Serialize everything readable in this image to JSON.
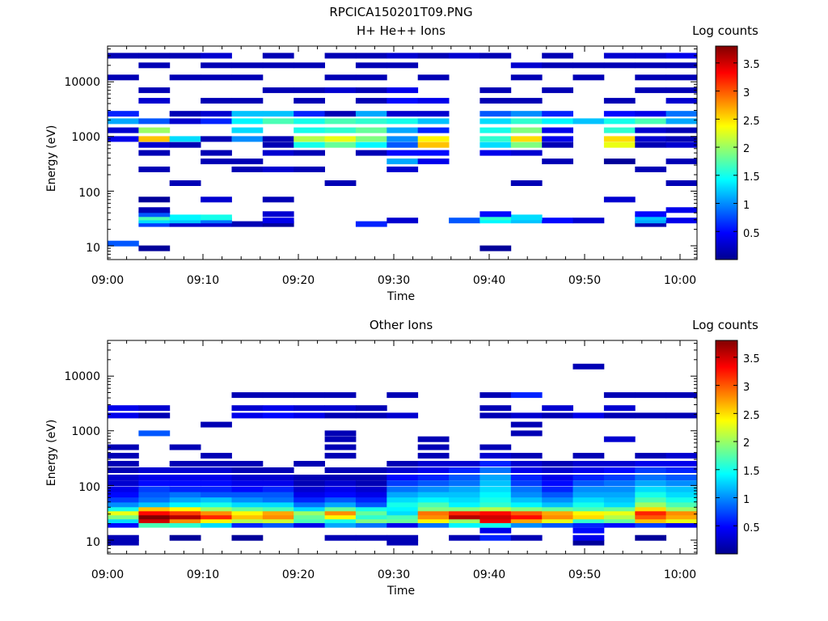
{
  "figure_title": "RPCICA150201T09.PNG",
  "chart_data": [
    {
      "type": "heatmap",
      "title": "H+ He++ Ions",
      "xlabel": "Time",
      "ylabel": "Energy (eV)",
      "colorbar_label": "Log counts",
      "x_range": [
        "09:00",
        "10:02"
      ],
      "x_ticks": [
        "09:00",
        "09:10",
        "09:20",
        "09:30",
        "09:40",
        "09:50",
        "10:00"
      ],
      "y_scale": "log",
      "y_range": [
        5.6,
        45000
      ],
      "y_ticks": [
        "10",
        "100",
        "1000",
        "10000"
      ],
      "colorbar_range": [
        0,
        3.8
      ],
      "colorbar_ticks": [
        "0.5",
        "1",
        "1.5",
        "2",
        "2.5",
        "3",
        "3.5"
      ],
      "colormap": "jet",
      "bands": [
        {
          "e": 11,
          "c": [
            0.8,
            0,
            0,
            0,
            0,
            0,
            0,
            0,
            0,
            0,
            0,
            0,
            0,
            0,
            0,
            0,
            0,
            0,
            0
          ]
        },
        {
          "e": 9,
          "c": [
            0,
            0.1,
            0,
            0,
            0,
            0,
            0,
            0,
            0,
            0,
            0,
            0,
            0.1,
            0,
            0,
            0,
            0,
            0,
            0
          ]
        },
        {
          "e": 25,
          "c": [
            0,
            0.7,
            0.3,
            0.3,
            0.2,
            0.1,
            0,
            0,
            0.6,
            0,
            0,
            0,
            0,
            0,
            0,
            0,
            0,
            0.2,
            0
          ]
        },
        {
          "e": 29,
          "c": [
            0,
            1.3,
            1.2,
            0.9,
            0,
            0.4,
            0,
            0,
            0,
            0.3,
            0,
            0.8,
            1.4,
            1.2,
            0.5,
            0.3,
            0,
            1.1,
            0.4
          ]
        },
        {
          "e": 33,
          "c": [
            0,
            1.7,
            1.4,
            1.5,
            0,
            0,
            0,
            0,
            0,
            0,
            0,
            0,
            1.6,
            1.3,
            0,
            0,
            0,
            1.2,
            0
          ]
        },
        {
          "e": 38,
          "c": [
            0,
            0.8,
            0,
            0,
            0,
            0.3,
            0,
            0,
            0,
            0,
            0,
            0,
            0.5,
            0,
            0,
            0,
            0,
            0.5,
            0
          ]
        },
        {
          "e": 45,
          "c": [
            0,
            0.2,
            0,
            0,
            0,
            0,
            0,
            0,
            0,
            0,
            0,
            0,
            0,
            0,
            0,
            0,
            0,
            0,
            0.4
          ]
        },
        {
          "e": 70,
          "c": [
            0,
            0.1,
            0,
            0.3,
            0,
            0.2,
            0,
            0,
            0,
            0,
            0,
            0,
            0,
            0,
            0,
            0,
            0.3,
            0,
            0
          ]
        },
        {
          "e": 140,
          "c": [
            0,
            0,
            0.2,
            0,
            0,
            0,
            0,
            0.2,
            0,
            0,
            0,
            0,
            0,
            0.2,
            0,
            0,
            0,
            0,
            0.2
          ]
        },
        {
          "e": 250,
          "c": [
            0,
            0.2,
            0,
            0,
            0.2,
            0.3,
            0.2,
            0,
            0,
            0.3,
            0,
            0,
            0,
            0,
            0,
            0,
            0,
            0.2,
            0
          ]
        },
        {
          "e": 350,
          "c": [
            0,
            0,
            0,
            0.2,
            0.2,
            0,
            0,
            0,
            0,
            1.1,
            0.4,
            0,
            0,
            0,
            0.2,
            0,
            0.1,
            0,
            0.2
          ]
        },
        {
          "e": 500,
          "c": [
            0,
            0.2,
            0,
            0.2,
            0,
            0.3,
            0.2,
            0,
            0.2,
            0.5,
            0.5,
            0,
            0.4,
            0.3,
            0,
            0,
            0,
            0,
            0
          ]
        },
        {
          "e": 700,
          "c": [
            0,
            0.3,
            0.2,
            0,
            0,
            0.2,
            1.5,
            1.8,
            1.4,
            0.8,
            2.6,
            0,
            1.3,
            1.9,
            0.2,
            0,
            2.3,
            0.2,
            0.3
          ]
        },
        {
          "e": 900,
          "c": [
            0.4,
            2.6,
            1.3,
            0.2,
            1.0,
            0.2,
            2.1,
            2.3,
            1.9,
            1.0,
            2.4,
            0,
            1.6,
            2.5,
            0.4,
            0,
            2.5,
            0.3,
            0.2
          ]
        },
        {
          "e": 1300,
          "c": [
            0.3,
            2.0,
            0,
            0,
            1.3,
            0,
            1.5,
            1.6,
            1.8,
            1.1,
            0.6,
            0,
            1.5,
            1.9,
            0.4,
            0,
            1.6,
            0.3,
            0.2
          ]
        },
        {
          "e": 1900,
          "c": [
            1.1,
            0.8,
            0.3,
            0.6,
            1.4,
            1.7,
            1.5,
            1.7,
            1.6,
            1.5,
            1.2,
            0,
            1.3,
            1.6,
            1.4,
            1.2,
            1.5,
            1.7,
            1.1
          ]
        },
        {
          "e": 2600,
          "c": [
            0.6,
            0,
            0.2,
            0.3,
            1.2,
            1.2,
            0.6,
            0.2,
            1.1,
            0.3,
            0.3,
            0,
            0.8,
            1.0,
            0.6,
            0,
            0.5,
            0.4,
            0.9
          ]
        },
        {
          "e": 4500,
          "c": [
            0,
            0.3,
            0,
            0.2,
            0.2,
            0,
            0.2,
            0,
            0.2,
            0.5,
            0.4,
            0,
            0.2,
            0.2,
            0,
            0,
            0.2,
            0,
            0.3
          ]
        },
        {
          "e": 7000,
          "c": [
            0,
            0.2,
            0,
            0,
            0,
            0.2,
            0.2,
            0.3,
            0.2,
            0.4,
            0,
            0,
            0.2,
            0,
            0.2,
            0,
            0,
            0.2,
            0.2
          ]
        },
        {
          "e": 12000,
          "c": [
            0.2,
            0,
            0.2,
            0.2,
            0.2,
            0,
            0,
            0.2,
            0.2,
            0,
            0.2,
            0,
            0,
            0.2,
            0,
            0.2,
            0,
            0.2,
            0.2
          ]
        },
        {
          "e": 20000,
          "c": [
            0,
            0.2,
            0,
            0.2,
            0.2,
            0.2,
            0.2,
            0,
            0.2,
            0.2,
            0,
            0,
            0,
            0.3,
            0.2,
            0.2,
            0.2,
            0.2,
            0.2
          ]
        },
        {
          "e": 30000,
          "c": [
            0.2,
            0.2,
            0.2,
            0.3,
            0,
            0.2,
            0,
            0.2,
            0.2,
            0.3,
            0.2,
            0.3,
            0.2,
            0,
            0.2,
            0,
            0.3,
            0.3,
            0.4
          ]
        }
      ]
    },
    {
      "type": "heatmap",
      "title": "Other Ions",
      "xlabel": "Time",
      "ylabel": "Energy (eV)",
      "colorbar_label": "Log counts",
      "x_range": [
        "09:00",
        "10:02"
      ],
      "x_ticks": [
        "09:00",
        "09:10",
        "09:20",
        "09:30",
        "09:40",
        "09:50",
        "10:00"
      ],
      "y_scale": "log",
      "y_range": [
        5.6,
        45000
      ],
      "y_ticks": [
        "10",
        "100",
        "1000",
        "10000"
      ],
      "colorbar_range": [
        0,
        3.8
      ],
      "colorbar_ticks": [
        "0.5",
        "1",
        "1.5",
        "2",
        "2.5",
        "3",
        "3.5"
      ],
      "colormap": "jet",
      "bands": [
        {
          "e": 9,
          "c": [
            0.2,
            0,
            0,
            0,
            0,
            0,
            0,
            0,
            0,
            0.2,
            0,
            0,
            0,
            0,
            0,
            0.1,
            0,
            0,
            0
          ]
        },
        {
          "e": 11,
          "c": [
            0.2,
            0,
            0.1,
            0,
            0.1,
            0,
            0,
            0.2,
            0.2,
            0.2,
            0,
            0.2,
            0.6,
            0.2,
            0,
            0.4,
            0,
            0.1,
            0
          ]
        },
        {
          "e": 15,
          "c": [
            0,
            0,
            0,
            0,
            0,
            0,
            0,
            0,
            0,
            0,
            0,
            0,
            0.4,
            0,
            0,
            0.5,
            0,
            0,
            0
          ]
        },
        {
          "e": 19,
          "c": [
            0.5,
            1.7,
            1.6,
            1.3,
            0.6,
            0.8,
            0.4,
            1.1,
            0.9,
            0.4,
            0.9,
            1.4,
            1.5,
            1.0,
            0.8,
            0.6,
            0.5,
            0.7,
            0.4
          ]
        },
        {
          "e": 23,
          "c": [
            1.3,
            3.5,
            2.8,
            2.4,
            2.1,
            2.2,
            1.7,
            1.5,
            1.9,
            1.8,
            2.4,
            2.0,
            3.4,
            2.7,
            2.3,
            1.6,
            1.8,
            2.6,
            2.3
          ]
        },
        {
          "e": 27,
          "c": [
            1.9,
            3.8,
            3.6,
            3.2,
            2.6,
            2.8,
            1.8,
            2.4,
            1.6,
            1.7,
            2.8,
            3.6,
            3.5,
            3.3,
            2.8,
            2.5,
            2.1,
            3.0,
            2.7
          ]
        },
        {
          "e": 32,
          "c": [
            2.3,
            3.3,
            3.1,
            2.8,
            2.4,
            2.7,
            2.0,
            2.8,
            1.8,
            1.3,
            2.9,
            3.2,
            3.3,
            3.0,
            2.7,
            2.4,
            2.3,
            3.2,
            2.8
          ]
        },
        {
          "e": 38,
          "c": [
            1.5,
            2.6,
            2.4,
            2.0,
            1.8,
            1.7,
            1.3,
            1.8,
            1.5,
            1.4,
            1.9,
            1.9,
            2.1,
            1.9,
            1.8,
            1.7,
            1.8,
            2.5,
            2.0
          ]
        },
        {
          "e": 45,
          "c": [
            1.0,
            1.2,
            1.4,
            1.5,
            1.3,
            1.3,
            0.9,
            1.1,
            0.8,
            1.5,
            1.7,
            1.4,
            1.6,
            1.4,
            1.2,
            1.5,
            1.3,
            2.0,
            1.7
          ]
        },
        {
          "e": 55,
          "c": [
            0.7,
            0.9,
            1.1,
            1.2,
            1.0,
            0.9,
            0.6,
            0.8,
            0.6,
            1.3,
            1.4,
            1.3,
            1.5,
            1.2,
            1.0,
            1.3,
            1.2,
            1.7,
            1.5
          ]
        },
        {
          "e": 68,
          "c": [
            0.5,
            0.8,
            0.9,
            0.8,
            0.8,
            0.8,
            0.4,
            0.5,
            0.4,
            1.1,
            1.2,
            1.2,
            1.4,
            1.0,
            0.8,
            1.1,
            1.1,
            1.5,
            1.3
          ]
        },
        {
          "e": 85,
          "c": [
            0.4,
            0.7,
            0.6,
            0.6,
            0.5,
            0.6,
            0.3,
            0.4,
            0.3,
            0.9,
            1.0,
            1.1,
            1.3,
            0.9,
            0.6,
            1.0,
            1.0,
            1.3,
            1.2
          ]
        },
        {
          "e": 110,
          "c": [
            0.3,
            0.5,
            0.5,
            0.5,
            0.4,
            0.4,
            0.2,
            0.3,
            0.2,
            0.7,
            0.8,
            0.9,
            1.2,
            0.7,
            0.5,
            0.8,
            0.9,
            1.1,
            1.0
          ]
        },
        {
          "e": 140,
          "c": [
            0.3,
            0.4,
            0.4,
            0.4,
            0.3,
            0.3,
            0.2,
            0.2,
            0.2,
            0.5,
            0.6,
            0.8,
            1.1,
            0.6,
            0.4,
            0.6,
            0.7,
            0.9,
            0.8
          ]
        },
        {
          "e": 190,
          "c": [
            0.2,
            0.3,
            0.3,
            0.3,
            0.2,
            0.2,
            0,
            0.2,
            0.2,
            0.3,
            0.4,
            0.6,
            0.9,
            0.4,
            0.3,
            0.4,
            0.5,
            0.7,
            0.6
          ]
        },
        {
          "e": 250,
          "c": [
            0.2,
            0,
            0.2,
            0.2,
            0.2,
            0,
            0.2,
            0,
            0,
            0.2,
            0.3,
            0.3,
            0.6,
            0.3,
            0.2,
            0.3,
            0.3,
            0.4,
            0.4
          ]
        },
        {
          "e": 350,
          "c": [
            0.2,
            0,
            0,
            0.2,
            0,
            0,
            0,
            0.2,
            0,
            0,
            0.2,
            0,
            0.3,
            0.2,
            0,
            0.2,
            0,
            0.2,
            0.3
          ]
        },
        {
          "e": 500,
          "c": [
            0.2,
            0,
            0.2,
            0,
            0,
            0,
            0,
            0.2,
            0,
            0,
            0.2,
            0,
            0.2,
            0,
            0,
            0,
            0,
            0,
            0
          ]
        },
        {
          "e": 700,
          "c": [
            0,
            0,
            0,
            0,
            0,
            0,
            0,
            0.2,
            0,
            0,
            0.2,
            0,
            0,
            0,
            0,
            0,
            0.3,
            0,
            0
          ]
        },
        {
          "e": 900,
          "c": [
            0,
            0.8,
            0,
            0,
            0,
            0,
            0,
            0.2,
            0,
            0,
            0,
            0,
            0,
            0.2,
            0,
            0,
            0,
            0,
            0
          ]
        },
        {
          "e": 1300,
          "c": [
            0,
            0,
            0,
            0.2,
            0,
            0,
            0,
            0,
            0,
            0,
            0,
            0,
            0,
            0.2,
            0,
            0,
            0,
            0,
            0
          ]
        },
        {
          "e": 1900,
          "c": [
            0.4,
            0.2,
            0,
            0,
            0.4,
            0.5,
            0.4,
            0.2,
            0.2,
            0.3,
            0,
            0,
            0.2,
            0.3,
            0.2,
            0.4,
            0.2,
            0.2,
            0.2
          ]
        },
        {
          "e": 2600,
          "c": [
            0.4,
            0.3,
            0,
            0,
            0.3,
            0.4,
            0.3,
            0.3,
            0.2,
            0,
            0,
            0,
            0.2,
            0,
            0.3,
            0,
            0.3,
            0,
            0
          ]
        },
        {
          "e": 4500,
          "c": [
            0,
            0,
            0,
            0,
            0.2,
            0.2,
            0.2,
            0.2,
            0,
            0.2,
            0,
            0,
            0.2,
            0.6,
            0,
            0,
            0.2,
            0.2,
            0.2
          ]
        },
        {
          "e": 15000,
          "c": [
            0,
            0,
            0,
            0,
            0,
            0,
            0,
            0,
            0,
            0,
            0,
            0,
            0,
            0,
            0,
            0.2,
            0,
            0,
            0
          ]
        }
      ]
    }
  ]
}
